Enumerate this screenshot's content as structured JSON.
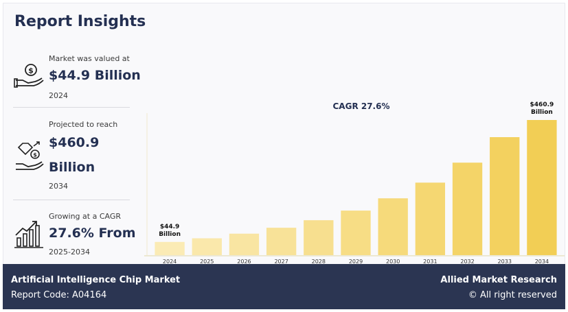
{
  "title": "Report Insights",
  "stats": [
    {
      "label": "Market was valued at",
      "value": "$44.9 Billion",
      "sub": "2024"
    },
    {
      "label": "Projected to reach",
      "value": "$460.9",
      "value_line2": "Billion",
      "sub": "2034"
    },
    {
      "label": "Growing at a CAGR",
      "value": "27.6% From",
      "sub": "2025-2034"
    }
  ],
  "chart_data": {
    "type": "bar",
    "title": "CAGR 27.6%",
    "categories": [
      "2024",
      "2025",
      "2026",
      "2027",
      "2028",
      "2029",
      "2030",
      "2031",
      "2032",
      "2033",
      "2034"
    ],
    "values": [
      44.9,
      57.3,
      73.1,
      93.3,
      119.0,
      151.8,
      193.7,
      247.2,
      315.4,
      402.4,
      460.9
    ],
    "unit": "$ Billion",
    "annotations": [
      {
        "category": "2024",
        "line1": "$44.9",
        "line2": "Billion"
      },
      {
        "category": "2034",
        "line1": "$460.9",
        "line2": "Billion"
      }
    ],
    "ylim": [
      0,
      500
    ],
    "xlabel": "",
    "ylabel": "",
    "colors": {
      "light": "#fbebb5",
      "dark": "#f2ce55"
    }
  },
  "footer": {
    "market": "Artificial Intelligence Chip Market",
    "report_code": "Report Code: A04164",
    "company": "Allied Market Research",
    "rights": "© All right reserved"
  }
}
